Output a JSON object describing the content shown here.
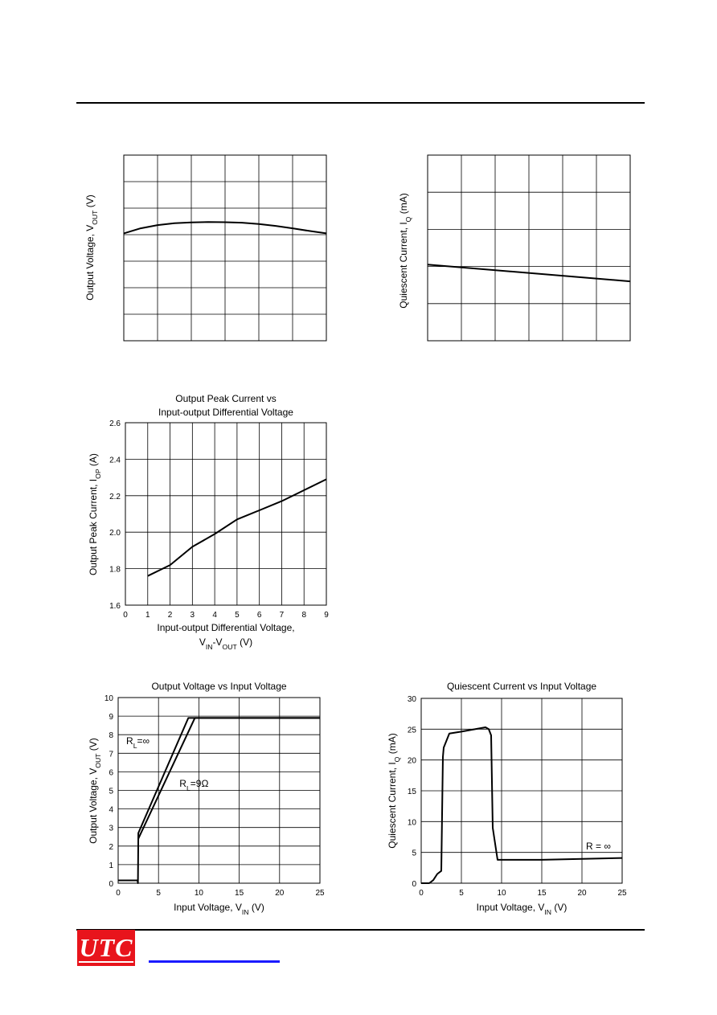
{
  "header": {},
  "chart_data": [
    {
      "type": "line",
      "title": "",
      "xlabel": "",
      "ylabel_main": "Output Voltage, V",
      "ylabel_sub": "OUT",
      "ylabel_tail": " (V)",
      "xlim": [
        0,
        6
      ],
      "ylim": [
        0,
        7
      ],
      "x_gridlines": 6,
      "y_gridlines": 7,
      "grid": true,
      "tick_labels_x": [],
      "tick_labels_y": [],
      "series": [
        {
          "x": [
            0,
            0.5,
            1,
            1.5,
            2,
            2.5,
            3,
            3.5,
            4,
            4.5,
            5,
            5.5,
            6
          ],
          "y": [
            4.05,
            4.24,
            4.36,
            4.43,
            4.46,
            4.48,
            4.47,
            4.45,
            4.4,
            4.33,
            4.24,
            4.14,
            4.05
          ]
        }
      ]
    },
    {
      "type": "line",
      "title": "",
      "xlabel": "",
      "ylabel_main": "Quiescent Current, I",
      "ylabel_sub": "Q",
      "ylabel_tail": " (mA)",
      "xlim": [
        0,
        6
      ],
      "ylim": [
        0,
        5
      ],
      "x_gridlines": 6,
      "y_gridlines": 5,
      "grid": true,
      "tick_labels_x": [],
      "tick_labels_y": [],
      "series": [
        {
          "x": [
            0,
            6
          ],
          "y": [
            2.05,
            1.6
          ]
        }
      ]
    },
    {
      "type": "line",
      "title_lines": [
        "Output Peak Current vs",
        "Input-output Differential Voltage"
      ],
      "xlabel_lines": [
        "Input-output Differential Voltage,"
      ],
      "xlabel2_parts": [
        "V",
        "IN",
        "-V",
        "OUT",
        " (V)"
      ],
      "ylabel_main": "Output Peak Current, I",
      "ylabel_sub": "OP",
      "ylabel_tail": " (A)",
      "xlim": [
        0,
        9
      ],
      "ylim": [
        1.6,
        2.6
      ],
      "xticks": [
        0,
        1,
        2,
        3,
        4,
        5,
        6,
        7,
        8,
        9
      ],
      "xtick_labels": [
        "0",
        "1",
        "2",
        "3",
        "4",
        "5",
        "6",
        "7",
        "8",
        "9"
      ],
      "yticks": [
        1.6,
        1.8,
        2.0,
        2.2,
        2.4,
        2.6
      ],
      "ytick_labels": [
        "1.6",
        "1.8",
        "2.0",
        "2.2",
        "2.4",
        "2.6"
      ],
      "grid": true,
      "series": [
        {
          "x": [
            1,
            2,
            3,
            4,
            5,
            6,
            7,
            8,
            9
          ],
          "y": [
            1.76,
            1.82,
            1.92,
            1.99,
            2.07,
            2.12,
            2.17,
            2.23,
            2.29
          ]
        }
      ]
    },
    {
      "type": "line",
      "title": "Output Voltage vs Input Voltage",
      "xlabel_parts": [
        "Input Voltage, V",
        "IN",
        " (V)"
      ],
      "ylabel_main": "Output Voltage, V",
      "ylabel_sub": "OUT",
      "ylabel_tail": " (V)",
      "xlim": [
        0,
        25
      ],
      "ylim": [
        0,
        10
      ],
      "xticks": [
        0,
        5,
        10,
        15,
        20,
        25
      ],
      "xtick_labels": [
        "0",
        "5",
        "10",
        "15",
        "20",
        "25"
      ],
      "yticks": [
        0,
        1,
        2,
        3,
        4,
        5,
        6,
        7,
        8,
        9,
        10
      ],
      "ytick_labels": [
        "0",
        "1",
        "2",
        "3",
        "4",
        "5",
        "6",
        "7",
        "8",
        "9",
        "10"
      ],
      "grid": true,
      "annotations": [
        {
          "label_main": "R",
          "label_sub": "L",
          "label_tail": "=∞",
          "x": 1.0,
          "y": 7.5
        },
        {
          "label_main": "R",
          "label_sub": "L",
          "label_tail": "=9Ω",
          "x": 7.6,
          "y": 5.2
        }
      ],
      "series": [
        {
          "name_main": "R",
          "name_sub": "L",
          "name_tail": "=∞",
          "x": [
            0,
            2.4,
            2.45,
            2.5,
            8.7,
            25
          ],
          "y": [
            0.15,
            0.15,
            0,
            2.7,
            8.9,
            8.9
          ]
        },
        {
          "name_main": "R",
          "name_sub": "L",
          "name_tail": "=9Ω",
          "x": [
            2.5,
            9.5,
            25
          ],
          "y": [
            2.4,
            8.9,
            8.9
          ]
        }
      ]
    },
    {
      "type": "line",
      "title": "Quiescent Current vs Input Voltage",
      "xlabel_parts": [
        "Input Voltage, V",
        "IN",
        " (V)"
      ],
      "ylabel_main": "Quiescent Current, I",
      "ylabel_sub": "Q",
      "ylabel_tail": " (mA)",
      "xlim": [
        0,
        25
      ],
      "ylim": [
        0,
        30
      ],
      "xticks": [
        0,
        5,
        10,
        15,
        20,
        25
      ],
      "xtick_labels": [
        "0",
        "5",
        "10",
        "15",
        "20",
        "25"
      ],
      "yticks": [
        0,
        5,
        10,
        15,
        20,
        25,
        30
      ],
      "ytick_labels": [
        "0",
        "5",
        "10",
        "15",
        "20",
        "25",
        "30"
      ],
      "grid": true,
      "annotations": [
        {
          "label_main": "R = ∞",
          "label_sub": "",
          "label_tail": "",
          "x": 20.5,
          "y": 5.5
        }
      ],
      "series": [
        {
          "x": [
            0,
            1,
            1.5,
            2,
            2.5,
            2.7,
            2.8,
            3.5,
            5,
            8,
            8.4,
            8.7,
            8.9,
            9.5,
            15,
            25
          ],
          "y": [
            0,
            0,
            0.5,
            1.5,
            2,
            20.5,
            22,
            24.3,
            24.6,
            25.3,
            25,
            24,
            9,
            3.8,
            3.8,
            4.1
          ]
        }
      ]
    }
  ],
  "footer": {
    "logo_text": "UTC"
  }
}
